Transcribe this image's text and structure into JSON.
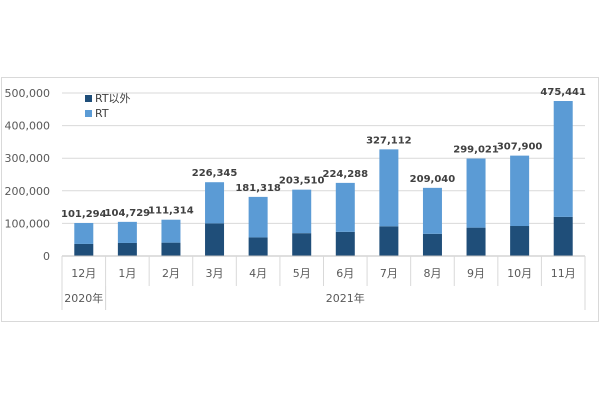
{
  "chart_data": {
    "type": "bar",
    "stacked": true,
    "categories": [
      "12月",
      "1月",
      "2月",
      "3月",
      "4月",
      "5月",
      "6月",
      "7月",
      "8月",
      "9月",
      "10月",
      "11月"
    ],
    "year_groups": [
      {
        "label": "2020年",
        "start": 0,
        "end": 0
      },
      {
        "label": "2021年",
        "start": 1,
        "end": 11
      }
    ],
    "series": [
      {
        "name": "RT以外",
        "color": "#1f4e79",
        "values": [
          37000,
          40000,
          41000,
          100000,
          57000,
          70000,
          74000,
          91000,
          68000,
          87000,
          92000,
          120000
        ]
      },
      {
        "name": "RT",
        "color": "#5b9bd5",
        "values": [
          64294,
          64729,
          70314,
          126345,
          124318,
          133510,
          150288,
          236112,
          141040,
          212021,
          215900,
          355441
        ]
      }
    ],
    "totals": [
      101294,
      104729,
      111314,
      226345,
      181318,
      203510,
      224288,
      327112,
      209040,
      299021,
      307900,
      475441
    ],
    "total_labels": [
      "101,294",
      "104,729",
      "111,314",
      "226,345",
      "181,318",
      "203,510",
      "224,288",
      "327,112",
      "209,040",
      "299,021",
      "307,900",
      "475,441"
    ],
    "y_ticks": [
      0,
      100000,
      200000,
      300000,
      400000,
      500000
    ],
    "y_tick_labels": [
      "0",
      "100,000",
      "200,000",
      "300,000",
      "400,000",
      "500,000"
    ],
    "ylim": [
      0,
      500000
    ],
    "grid": true,
    "legend_position": "top-left"
  }
}
